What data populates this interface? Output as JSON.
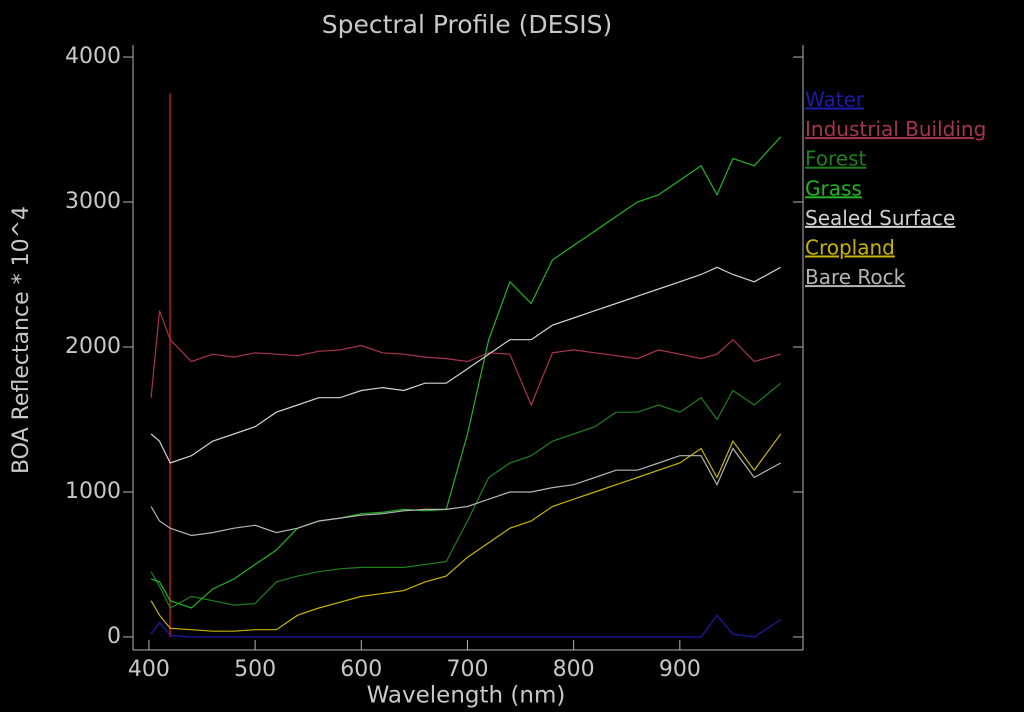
{
  "chart_data": {
    "type": "line",
    "title": "Spectral Profile (DESIS)",
    "x_label": "Wavelength (nm)",
    "y_label": "BOA Reflectance * 10^4",
    "x": [
      402,
      410,
      420,
      440,
      460,
      480,
      500,
      520,
      540,
      560,
      580,
      600,
      620,
      640,
      660,
      680,
      700,
      720,
      740,
      760,
      780,
      800,
      820,
      840,
      860,
      880,
      900,
      920,
      935,
      950,
      970,
      995
    ],
    "series": [
      {
        "name": "Water",
        "color": "#1c1ca8",
        "values": [
          20,
          100,
          10,
          0,
          0,
          0,
          0,
          0,
          0,
          0,
          0,
          0,
          0,
          0,
          0,
          0,
          0,
          0,
          0,
          0,
          0,
          0,
          0,
          0,
          0,
          0,
          0,
          0,
          150,
          20,
          0,
          120
        ]
      },
      {
        "name": "Industrial Building",
        "color": "#a8344e",
        "values": [
          1650,
          2250,
          2050,
          1900,
          1950,
          1930,
          1960,
          1950,
          1940,
          1970,
          1980,
          2010,
          1960,
          1950,
          1930,
          1920,
          1900,
          1960,
          1950,
          1600,
          1960,
          1980,
          1960,
          1940,
          1920,
          1980,
          1950,
          1920,
          1950,
          2050,
          1900,
          1950
        ]
      },
      {
        "name": "Forest",
        "color": "#1f7f1f",
        "values": [
          450,
          350,
          200,
          280,
          250,
          220,
          230,
          380,
          420,
          450,
          470,
          480,
          480,
          480,
          500,
          520,
          800,
          1100,
          1200,
          1250,
          1350,
          1400,
          1450,
          1550,
          1550,
          1600,
          1550,
          1650,
          1500,
          1700,
          1600,
          1750
        ]
      },
      {
        "name": "Grass",
        "color": "#22b422",
        "values": [
          400,
          380,
          250,
          200,
          330,
          400,
          500,
          600,
          750,
          800,
          820,
          850,
          860,
          880,
          870,
          880,
          1400,
          2050,
          2450,
          2300,
          2600,
          2700,
          2800,
          2900,
          3000,
          3050,
          3150,
          3250,
          3050,
          3300,
          3250,
          3450
        ]
      },
      {
        "name": "Sealed Surface",
        "color": "#d2d2d2",
        "values": [
          1400,
          1350,
          1200,
          1250,
          1350,
          1400,
          1450,
          1550,
          1600,
          1650,
          1650,
          1700,
          1720,
          1700,
          1750,
          1750,
          1850,
          1950,
          2050,
          2050,
          2150,
          2200,
          2250,
          2300,
          2350,
          2400,
          2450,
          2500,
          2550,
          2500,
          2450,
          2550
        ]
      },
      {
        "name": "Cropland",
        "color": "#c8b400",
        "values": [
          250,
          150,
          60,
          50,
          40,
          40,
          50,
          50,
          150,
          200,
          240,
          280,
          300,
          320,
          380,
          420,
          550,
          650,
          750,
          800,
          900,
          950,
          1000,
          1050,
          1100,
          1150,
          1200,
          1300,
          1100,
          1350,
          1150,
          1400
        ]
      },
      {
        "name": "Bare Rock",
        "color": "#b4b4b4",
        "values": [
          900,
          800,
          750,
          700,
          720,
          750,
          770,
          720,
          750,
          800,
          820,
          840,
          850,
          870,
          880,
          880,
          900,
          950,
          1000,
          1000,
          1030,
          1050,
          1100,
          1150,
          1150,
          1200,
          1250,
          1250,
          1050,
          1300,
          1100,
          1200
        ]
      }
    ],
    "cursor": {
      "x": 420,
      "ytop": 3750,
      "color": "#8b1a1a"
    },
    "xlim": [
      385,
      1016
    ],
    "ylim": [
      -90,
      4083
    ],
    "xticks": [
      400,
      500,
      600,
      700,
      800,
      900
    ],
    "yticks": [
      0,
      1000,
      2000,
      3000,
      4000
    ]
  }
}
